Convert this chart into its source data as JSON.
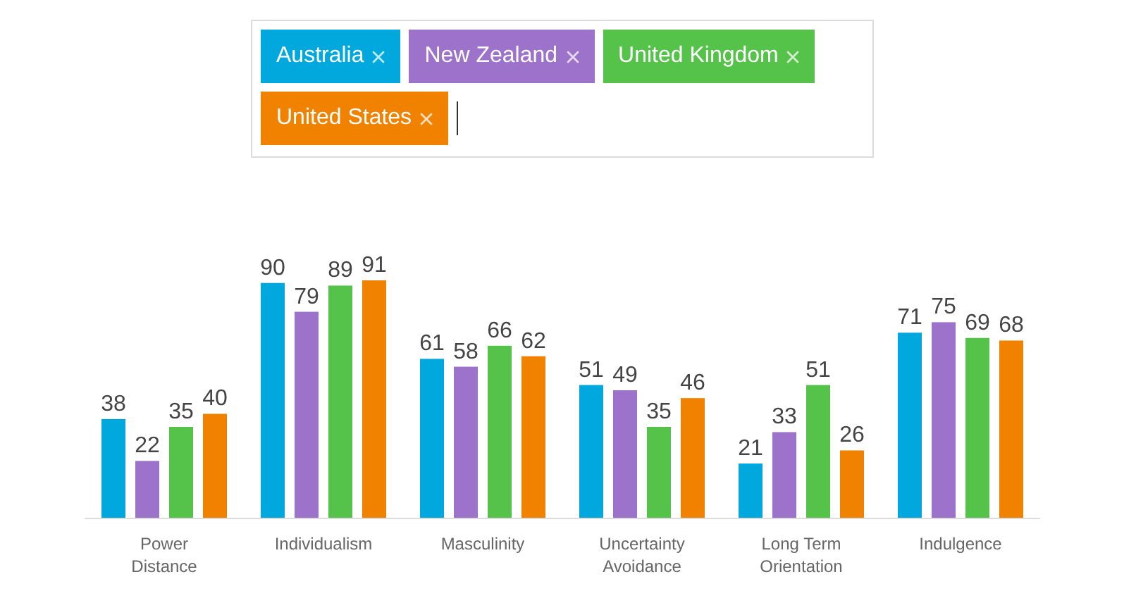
{
  "chart_data": {
    "type": "bar",
    "categories": [
      "Power Distance",
      "Individualism",
      "Masculinity",
      "Uncertainty Avoidance",
      "Long Term Orientation",
      "Indulgence"
    ],
    "series": [
      {
        "name": "Australia",
        "color": "#00a8de",
        "values": [
          38,
          90,
          61,
          51,
          21,
          71
        ]
      },
      {
        "name": "New Zealand",
        "color": "#9d72cb",
        "values": [
          22,
          79,
          58,
          49,
          33,
          75
        ]
      },
      {
        "name": "United Kingdom",
        "color": "#55c24a",
        "values": [
          35,
          89,
          66,
          35,
          51,
          69
        ]
      },
      {
        "name": "United States",
        "color": "#f08200",
        "values": [
          40,
          91,
          62,
          46,
          26,
          68
        ]
      }
    ],
    "data_labels": true,
    "legend": "top"
  }
}
